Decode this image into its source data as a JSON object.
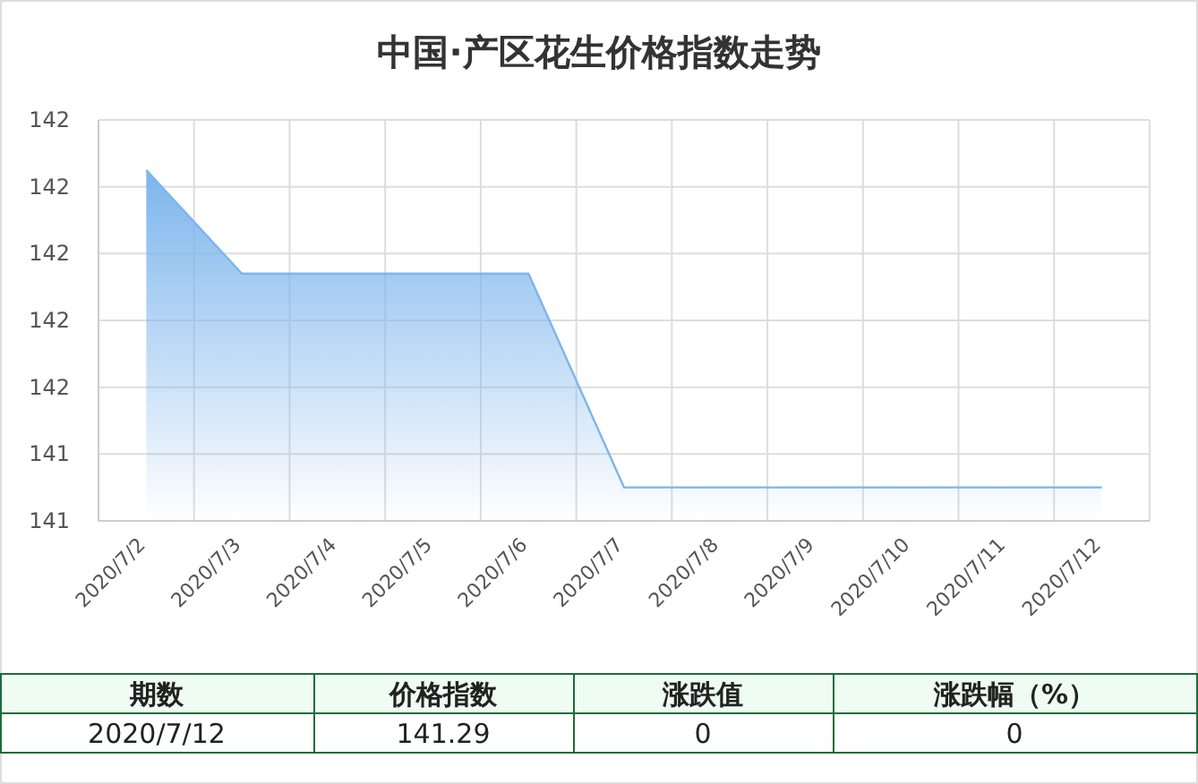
{
  "chart_data": {
    "type": "area",
    "title": "中国·产区花生价格指数走势",
    "categories": [
      "2020/7/2",
      "2020/7/3",
      "2020/7/4",
      "2020/7/5",
      "2020/7/6",
      "2020/7/7",
      "2020/7/8",
      "2020/7/9",
      "2020/7/10",
      "2020/7/11",
      "2020/7/12"
    ],
    "series": [
      {
        "color": "#7cb5ec",
        "values": [
          142.24,
          141.93,
          141.93,
          141.93,
          141.93,
          141.29,
          141.29,
          141.29,
          141.29,
          141.29,
          141.29
        ]
      }
    ],
    "ylim": [
      141.19,
      142.39
    ],
    "yticks": [
      {
        "value": 141.19,
        "label": "141"
      },
      {
        "value": 141.39,
        "label": "141"
      },
      {
        "value": 141.59,
        "label": "142"
      },
      {
        "value": 141.79,
        "label": "142"
      },
      {
        "value": 141.99,
        "label": "142"
      },
      {
        "value": 142.19,
        "label": "142"
      },
      {
        "value": 142.39,
        "label": "142"
      }
    ],
    "grid": true,
    "marker": "none",
    "line_style": "solid",
    "annotations": [
      "期数",
      "价格指数",
      "涨跌值",
      "涨跌幅（%）",
      "2020/7/12",
      "141.29",
      "0",
      "0"
    ]
  }
}
